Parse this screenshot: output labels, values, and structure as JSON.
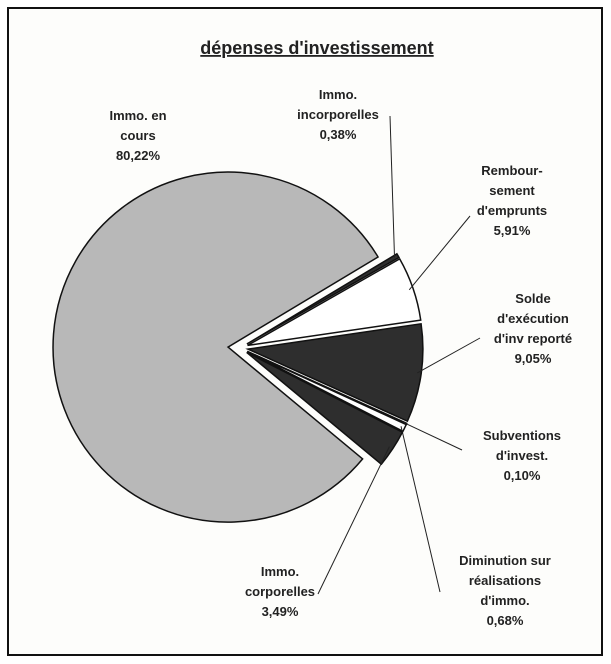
{
  "chart_data": {
    "type": "pie",
    "title": "dépenses d'investissement",
    "categories": [
      [
        "Immo. en",
        "cours"
      ],
      [
        "Immo.",
        "incorporelles"
      ],
      [
        "Rembour-",
        "sement",
        "d'emprunts"
      ],
      [
        "Solde",
        "d'exécution",
        "d'inv reporté"
      ],
      [
        "Subventions",
        "d'invest."
      ],
      [
        "Diminution sur",
        "réalisations",
        "d'immo."
      ],
      [
        "Immo.",
        "corporelles"
      ]
    ],
    "values": [
      80.22,
      0.38,
      5.91,
      9.05,
      0.1,
      0.68,
      3.49
    ],
    "value_labels": [
      "80,22%",
      "0,38%",
      "5,91%",
      "9,05%",
      "0,10%",
      "0,68%",
      "3,49%"
    ],
    "colors": [
      "#b8b8b8",
      "#2e2e2e",
      "#ffffff",
      "#2e2e2e",
      "#ffffff",
      "#ffffff",
      "#2e2e2e"
    ]
  }
}
